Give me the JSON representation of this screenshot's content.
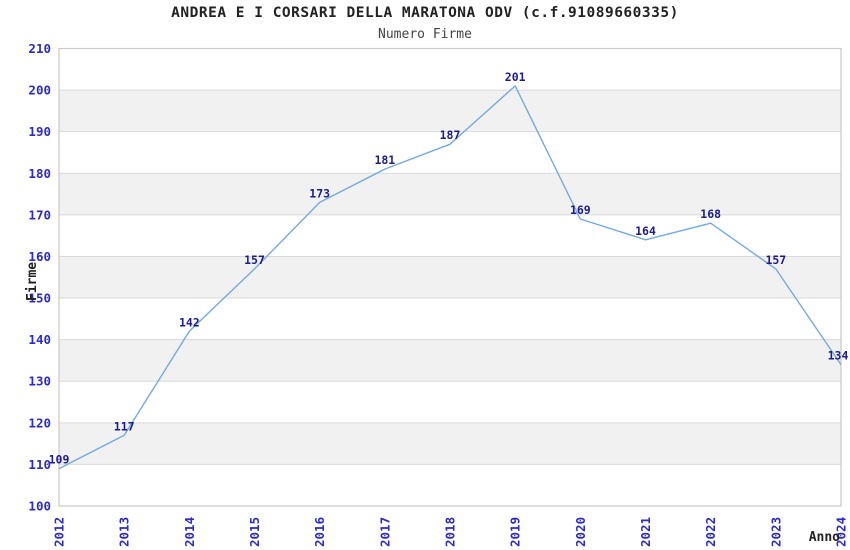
{
  "header": {
    "title": "ANDREA E I CORSARI DELLA MARATONA ODV (c.f.91089660335)",
    "subtitle": "Numero Firme"
  },
  "chart_data": {
    "type": "line",
    "title": "ANDREA E I CORSARI DELLA MARATONA ODV (c.f.91089660335)",
    "subtitle": "Numero Firme",
    "xlabel": "Anno",
    "ylabel": "Firme",
    "categories": [
      "2012",
      "2013",
      "2014",
      "2015",
      "2016",
      "2017",
      "2018",
      "2019",
      "2020",
      "2021",
      "2022",
      "2023",
      "2024"
    ],
    "values": [
      109,
      117,
      142,
      157,
      173,
      181,
      187,
      201,
      169,
      164,
      168,
      157,
      134
    ],
    "ylim": [
      100,
      210
    ],
    "ytick_step": 10,
    "grid": "horizontal-only",
    "banding": "alternating-gray-rows",
    "legend": "none",
    "data_labels": true,
    "colors": {
      "line": "#74A9E2",
      "data_label": "#1C1C8F",
      "axis_tick": "#2A2ACD",
      "axis_title": "#222222",
      "title": "#222222",
      "subtitle": "#444444",
      "gridline": "#DADADA",
      "band": "#F1F1F1",
      "plot_border": "#C9C9C9",
      "background": "#FFFFFF"
    }
  }
}
